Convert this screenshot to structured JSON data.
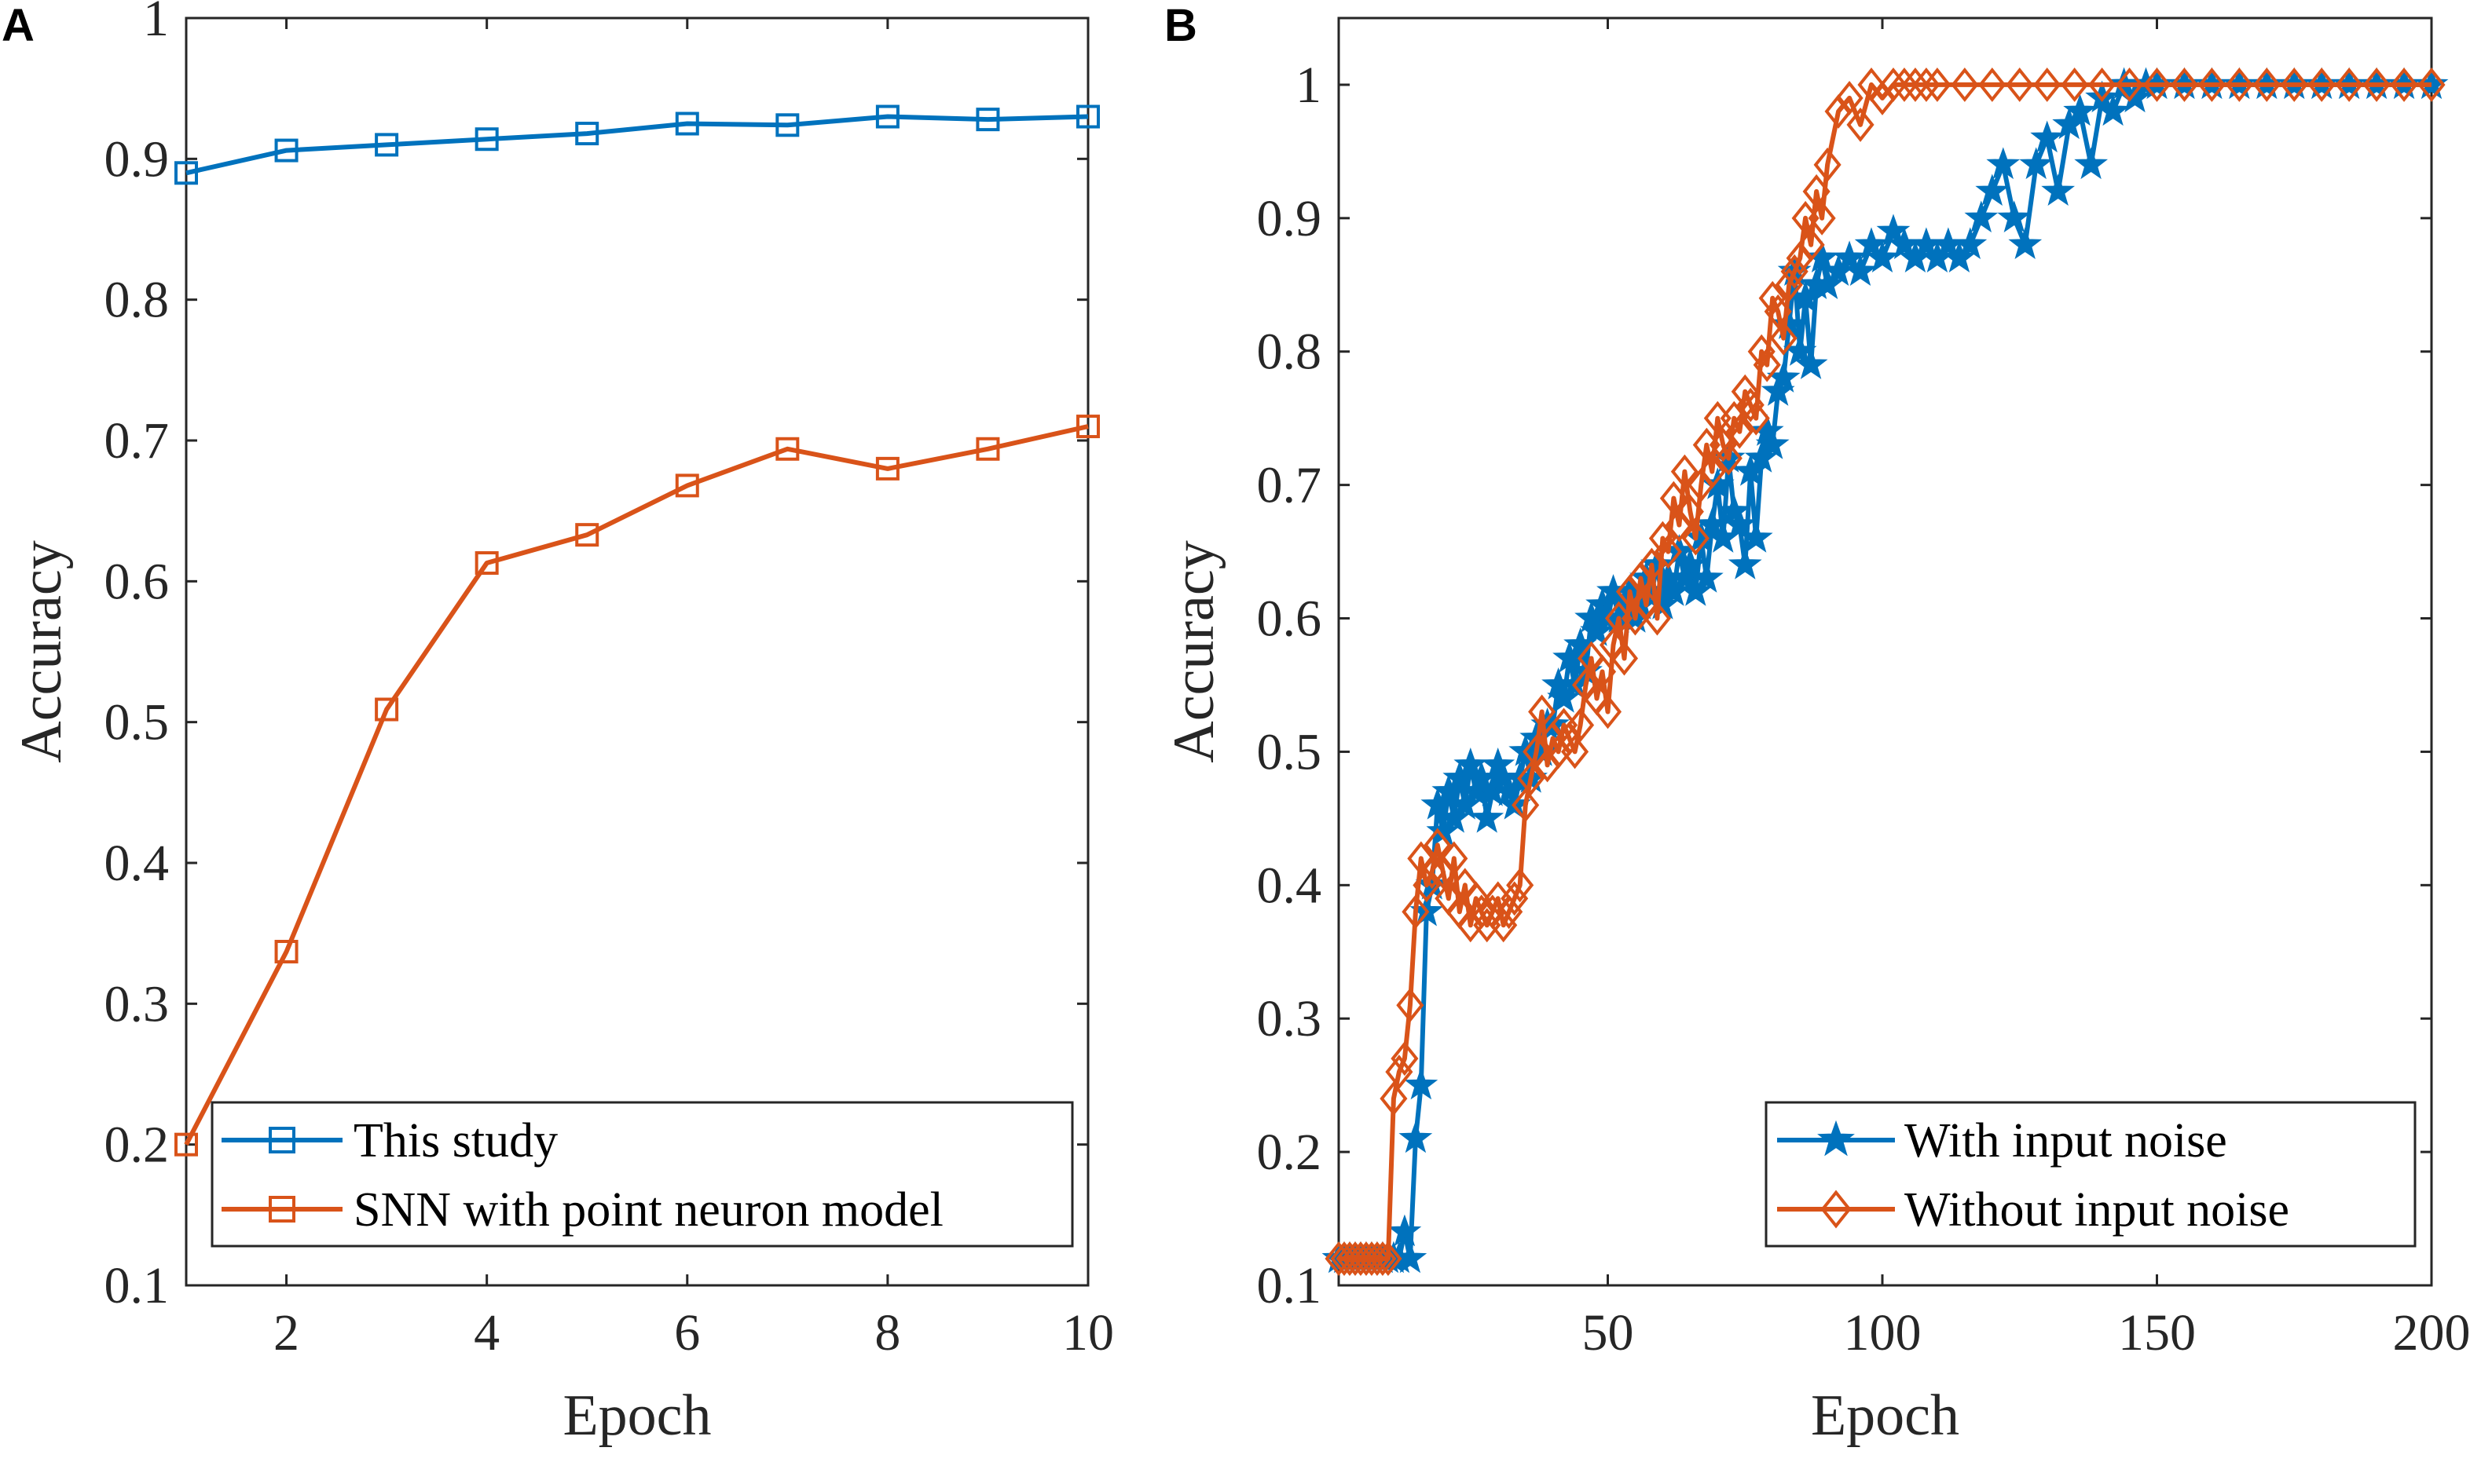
{
  "chart_data": [
    {
      "panel": "A",
      "type": "line",
      "xlabel": "Epoch",
      "ylabel": "Accuracy",
      "xlim": [
        1,
        10
      ],
      "ylim": [
        0.1,
        1
      ],
      "xticks": [
        2,
        4,
        6,
        8,
        10
      ],
      "xtick_labels": [
        "2",
        "4",
        "6",
        "8",
        "10"
      ],
      "yticks": [
        0.1,
        0.2,
        0.3,
        0.4,
        0.5,
        0.6,
        0.7,
        0.8,
        0.9,
        1
      ],
      "ytick_labels": [
        "0.1",
        "0.2",
        "0.3",
        "0.4",
        "0.5",
        "0.6",
        "0.7",
        "0.8",
        "0.9",
        "1"
      ],
      "legend_position": "bottom-right",
      "series": [
        {
          "name": "This study",
          "color": "#0072BD",
          "marker": "square",
          "x": [
            1,
            2,
            3,
            4,
            5,
            6,
            7,
            8,
            9,
            10
          ],
          "values": [
            0.89,
            0.906,
            0.91,
            0.914,
            0.918,
            0.925,
            0.924,
            0.93,
            0.928,
            0.93
          ]
        },
        {
          "name": "SNN with point neuron model",
          "color": "#D95319",
          "marker": "square",
          "x": [
            1,
            2,
            3,
            4,
            5,
            6,
            7,
            8,
            9,
            10
          ],
          "values": [
            0.2,
            0.337,
            0.509,
            0.613,
            0.633,
            0.668,
            0.694,
            0.68,
            0.694,
            0.71
          ]
        }
      ]
    },
    {
      "panel": "B",
      "type": "line",
      "xlabel": "Epoch",
      "ylabel": "Accuracy",
      "xlim": [
        1,
        200
      ],
      "ylim": [
        0.1,
        1.05
      ],
      "xticks": [
        50,
        100,
        150,
        200
      ],
      "xtick_labels": [
        "50",
        "100",
        "150",
        "200"
      ],
      "yticks": [
        0.1,
        0.2,
        0.3,
        0.4,
        0.5,
        0.6,
        0.7,
        0.8,
        0.9,
        1
      ],
      "ytick_labels": [
        "0.1",
        "0.2",
        "0.3",
        "0.4",
        "0.5",
        "0.6",
        "0.7",
        "0.8",
        "0.9",
        "1"
      ],
      "legend_position": "bottom-right",
      "series": [
        {
          "name": "With input noise",
          "color": "#0072BD",
          "marker": "star",
          "x": [
            1,
            2,
            3,
            4,
            5,
            6,
            7,
            8,
            9,
            10,
            11,
            12,
            13,
            14,
            15,
            16,
            17,
            18,
            19,
            20,
            21,
            22,
            23,
            24,
            25,
            26,
            27,
            28,
            29,
            30,
            31,
            32,
            33,
            34,
            35,
            36,
            37,
            38,
            39,
            40,
            41,
            42,
            43,
            44,
            45,
            46,
            47,
            48,
            49,
            50,
            51,
            52,
            53,
            54,
            55,
            56,
            57,
            58,
            59,
            60,
            61,
            62,
            63,
            64,
            65,
            66,
            67,
            68,
            69,
            70,
            71,
            72,
            73,
            74,
            75,
            76,
            77,
            78,
            79,
            80,
            81,
            82,
            83,
            84,
            85,
            86,
            87,
            88,
            89,
            90,
            92,
            94,
            96,
            98,
            100,
            102,
            104,
            106,
            108,
            110,
            112,
            114,
            116,
            118,
            120,
            122,
            124,
            126,
            128,
            130,
            132,
            134,
            136,
            138,
            140,
            142,
            144,
            146,
            148,
            150,
            155,
            160,
            165,
            170,
            175,
            180,
            185,
            190,
            195,
            200
          ],
          "values": [
            0.12,
            0.12,
            0.12,
            0.12,
            0.12,
            0.12,
            0.12,
            0.12,
            0.12,
            0.12,
            0.12,
            0.12,
            0.14,
            0.12,
            0.21,
            0.25,
            0.38,
            0.4,
            0.46,
            0.44,
            0.47,
            0.45,
            0.48,
            0.46,
            0.49,
            0.47,
            0.48,
            0.45,
            0.47,
            0.49,
            0.48,
            0.47,
            0.46,
            0.48,
            0.5,
            0.48,
            0.51,
            0.5,
            0.52,
            0.52,
            0.55,
            0.54,
            0.57,
            0.55,
            0.58,
            0.56,
            0.6,
            0.59,
            0.61,
            0.6,
            0.62,
            0.6,
            0.61,
            0.62,
            0.6,
            0.61,
            0.63,
            0.62,
            0.64,
            0.61,
            0.63,
            0.62,
            0.65,
            0.63,
            0.64,
            0.62,
            0.66,
            0.63,
            0.67,
            0.7,
            0.66,
            0.72,
            0.68,
            0.67,
            0.64,
            0.71,
            0.66,
            0.72,
            0.74,
            0.73,
            0.77,
            0.78,
            0.82,
            0.86,
            0.8,
            0.84,
            0.79,
            0.85,
            0.87,
            0.85,
            0.86,
            0.87,
            0.86,
            0.88,
            0.87,
            0.89,
            0.88,
            0.87,
            0.88,
            0.87,
            0.88,
            0.87,
            0.88,
            0.9,
            0.92,
            0.94,
            0.9,
            0.88,
            0.94,
            0.96,
            0.92,
            0.97,
            0.98,
            0.94,
            0.99,
            0.98,
            1,
            0.99,
            1,
            1,
            1,
            1,
            1,
            1,
            1,
            1,
            1,
            1,
            1,
            1
          ]
        },
        {
          "name": "Without input noise",
          "color": "#D95319",
          "marker": "diamond",
          "x": [
            1,
            2,
            3,
            4,
            5,
            6,
            7,
            8,
            9,
            10,
            11,
            12,
            13,
            14,
            15,
            16,
            17,
            18,
            19,
            20,
            21,
            22,
            23,
            24,
            25,
            26,
            27,
            28,
            29,
            30,
            31,
            32,
            33,
            34,
            35,
            36,
            37,
            38,
            39,
            40,
            41,
            42,
            43,
            44,
            45,
            46,
            47,
            48,
            49,
            50,
            51,
            52,
            53,
            54,
            55,
            56,
            57,
            58,
            59,
            60,
            61,
            62,
            63,
            64,
            65,
            66,
            67,
            68,
            69,
            70,
            71,
            72,
            73,
            74,
            75,
            76,
            77,
            78,
            79,
            80,
            81,
            82,
            83,
            84,
            85,
            86,
            87,
            88,
            89,
            90,
            92,
            94,
            96,
            98,
            100,
            102,
            104,
            106,
            108,
            110,
            115,
            120,
            125,
            130,
            135,
            140,
            145,
            150,
            155,
            160,
            165,
            170,
            175,
            180,
            185,
            190,
            195,
            200
          ],
          "values": [
            0.12,
            0.12,
            0.12,
            0.12,
            0.12,
            0.12,
            0.12,
            0.12,
            0.12,
            0.12,
            0.24,
            0.26,
            0.27,
            0.31,
            0.38,
            0.42,
            0.4,
            0.41,
            0.43,
            0.41,
            0.39,
            0.42,
            0.38,
            0.4,
            0.37,
            0.39,
            0.38,
            0.37,
            0.38,
            0.39,
            0.37,
            0.38,
            0.39,
            0.4,
            0.46,
            0.48,
            0.5,
            0.53,
            0.49,
            0.51,
            0.5,
            0.52,
            0.51,
            0.5,
            0.52,
            0.55,
            0.57,
            0.54,
            0.56,
            0.53,
            0.58,
            0.6,
            0.57,
            0.62,
            0.6,
            0.63,
            0.61,
            0.64,
            0.6,
            0.66,
            0.65,
            0.69,
            0.67,
            0.71,
            0.68,
            0.66,
            0.7,
            0.73,
            0.71,
            0.75,
            0.73,
            0.72,
            0.75,
            0.74,
            0.77,
            0.76,
            0.75,
            0.8,
            0.79,
            0.84,
            0.83,
            0.81,
            0.85,
            0.86,
            0.87,
            0.9,
            0.88,
            0.92,
            0.9,
            0.94,
            0.98,
            0.99,
            0.97,
            1,
            0.99,
            1,
            1,
            1,
            1,
            1,
            1,
            1,
            1,
            1,
            1,
            1,
            1,
            1,
            1,
            1,
            1,
            1,
            1,
            1,
            1,
            1,
            1,
            1
          ]
        }
      ]
    }
  ]
}
